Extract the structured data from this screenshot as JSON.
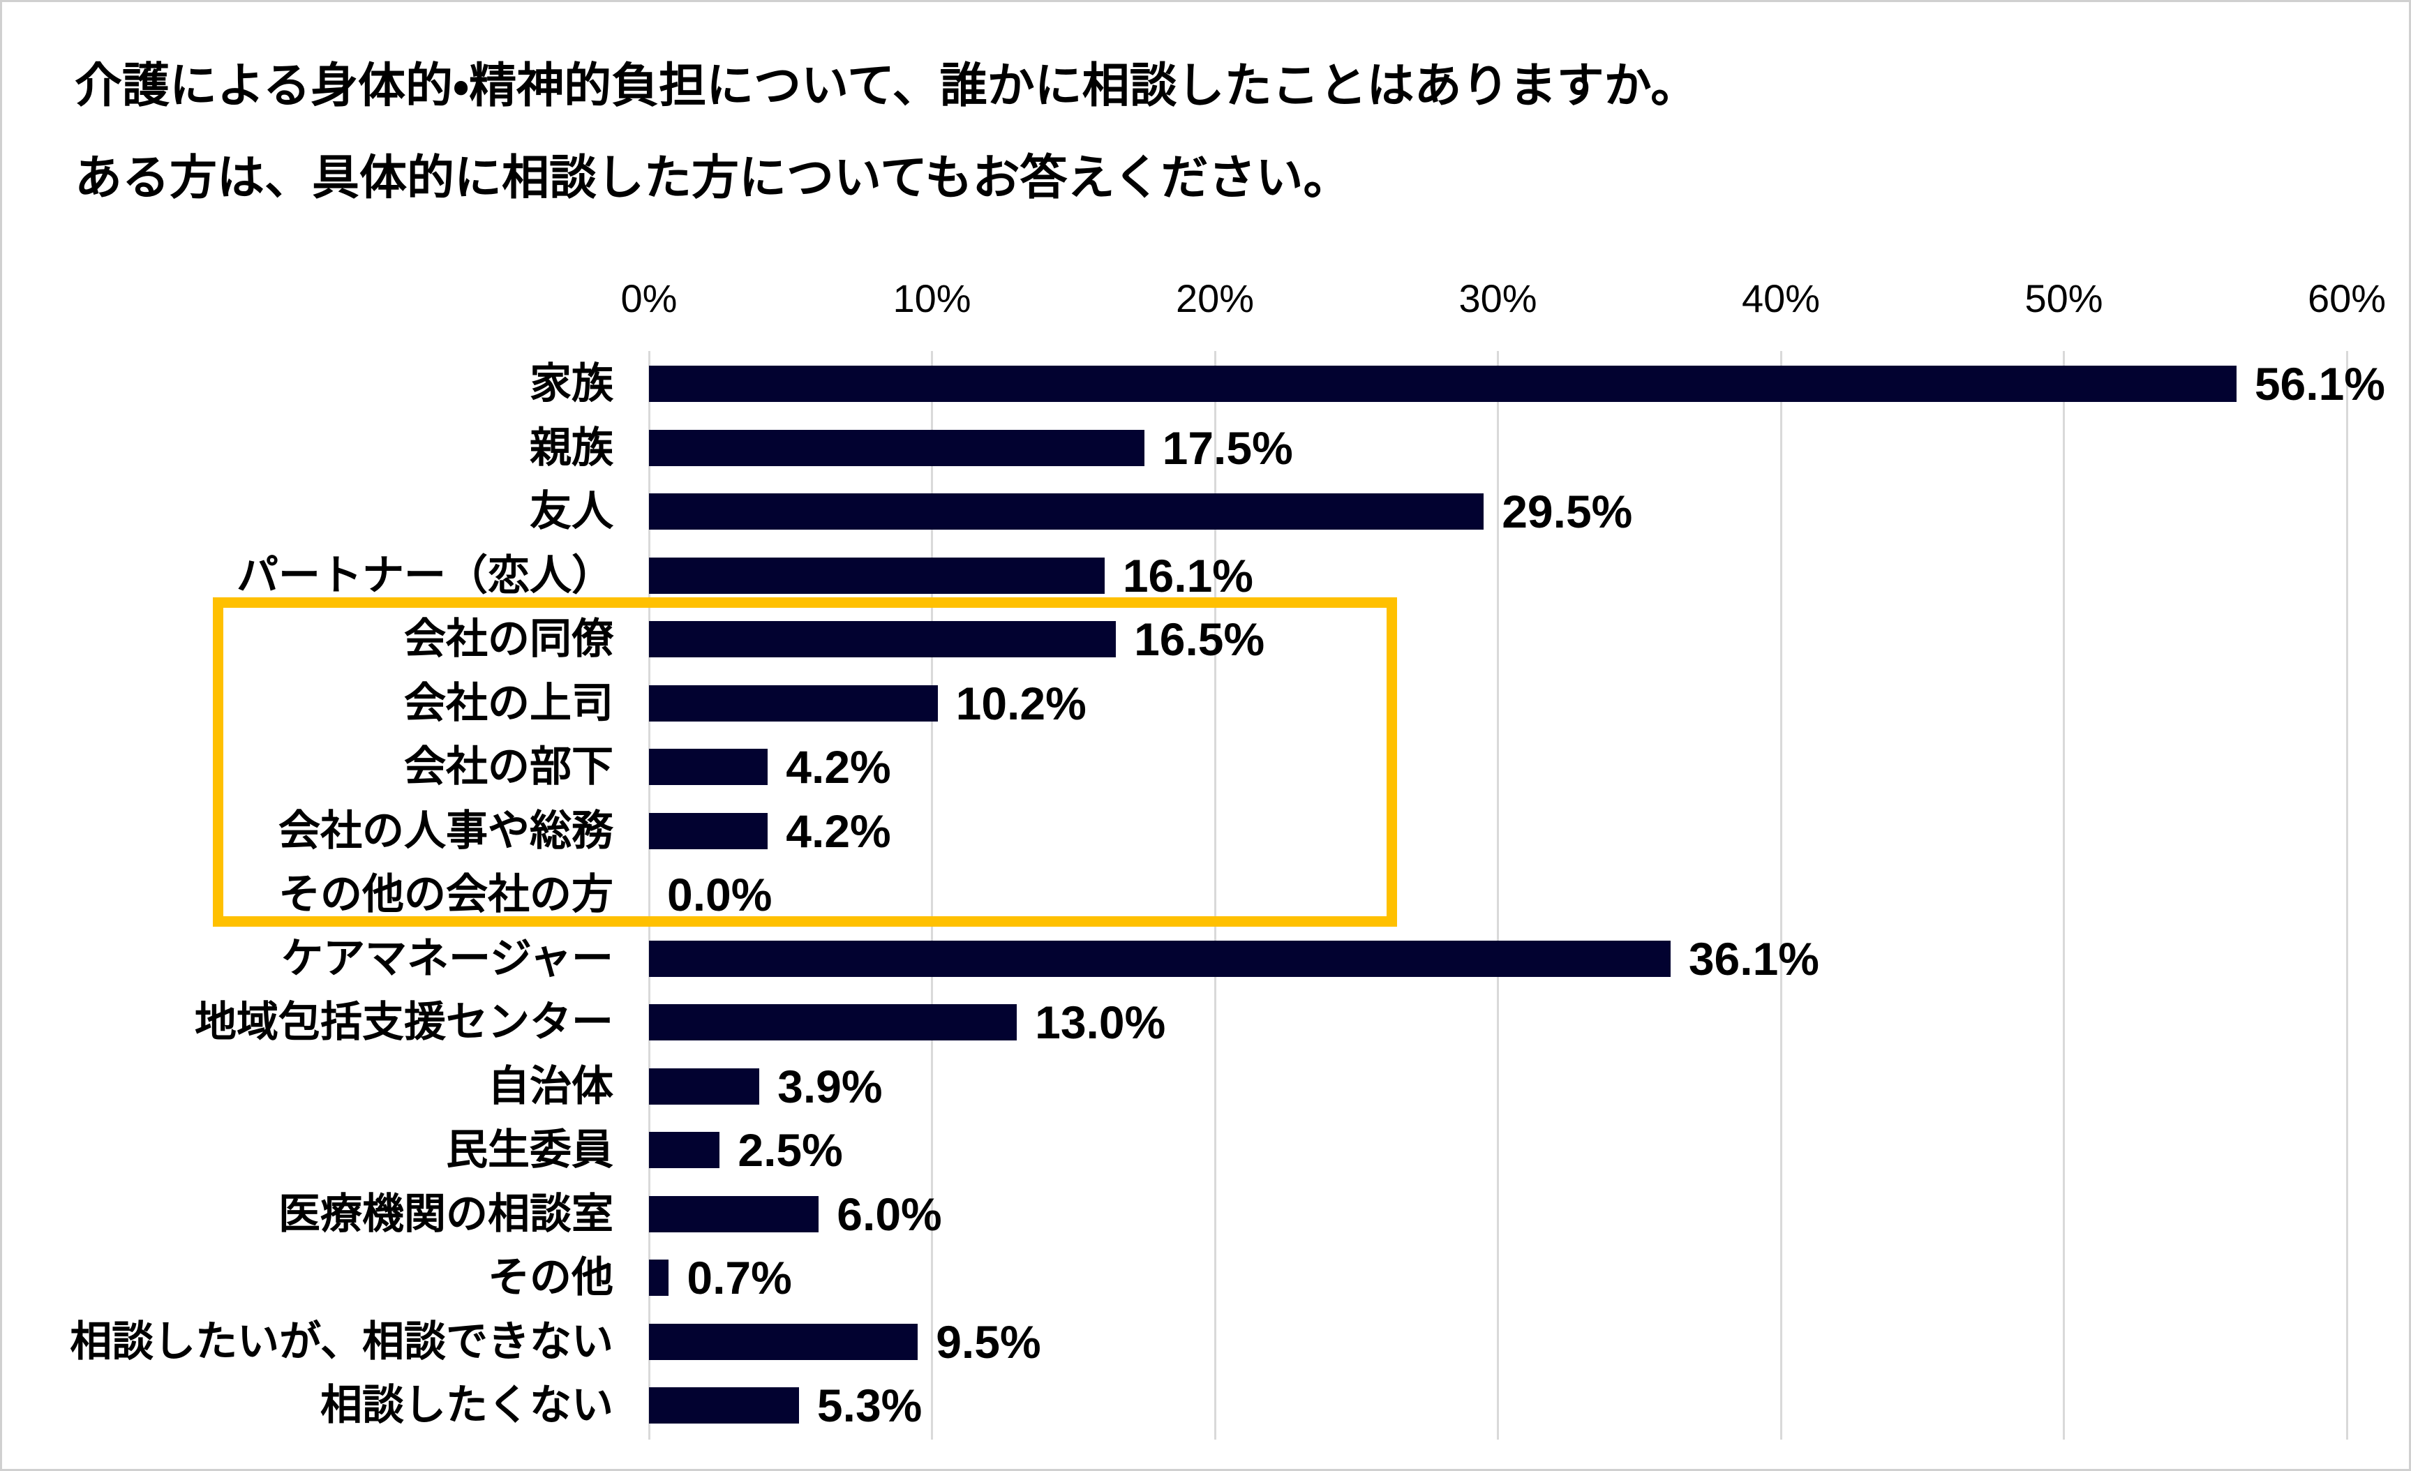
{
  "page": {
    "background": "#FFFFFF",
    "border_color": "#D0D0D0"
  },
  "title": {
    "line1": "介護による身体的・精神的負担について、誰かに相談したことはありますか。",
    "line2": "ある方は、具体的に相談した方についてもお答えください。"
  },
  "chart_data": {
    "type": "bar",
    "orientation": "horizontal",
    "title": "介護による身体的・精神的負担について、誰かに相談したことはありますか。ある方は、具体的に相談した方についてもお答えください。",
    "xlabel": "",
    "ylabel": "",
    "xlim": [
      0,
      60
    ],
    "x_ticks": [
      "0%",
      "10%",
      "20%",
      "30%",
      "40%",
      "50%",
      "60%"
    ],
    "x_tick_values": [
      0,
      10,
      20,
      30,
      40,
      50,
      60
    ],
    "grid": true,
    "gridline_color": "#D9D9D9",
    "bar_color": "#020230",
    "categories": [
      "家族",
      "親族",
      "友人",
      "パートナー（恋人）",
      "会社の同僚",
      "会社の上司",
      "会社の部下",
      "会社の人事や総務",
      "その他の会社の方",
      "ケアマネージャー",
      "地域包括支援センター",
      "自治体",
      "民生委員",
      "医療機関の相談室",
      "その他",
      "相談したいが、相談できない",
      "相談したくない"
    ],
    "values": [
      56.1,
      17.5,
      29.5,
      16.1,
      16.5,
      10.2,
      4.2,
      4.2,
      0.0,
      36.1,
      13.0,
      3.9,
      2.5,
      6.0,
      0.7,
      9.5,
      5.3
    ],
    "value_labels": [
      "56.1%",
      "17.5%",
      "29.5%",
      "16.1%",
      "16.5%",
      "10.2%",
      "4.2%",
      "4.2%",
      "0.0%",
      "36.1%",
      "13.0%",
      "3.9%",
      "2.5%",
      "6.0%",
      "0.7%",
      "9.5%",
      "5.3%"
    ],
    "highlight_box": {
      "color": "#FFC000",
      "categories_covered": [
        "会社の同僚",
        "会社の上司",
        "会社の部下",
        "会社の人事や総務",
        "その他の会社の方"
      ]
    }
  }
}
